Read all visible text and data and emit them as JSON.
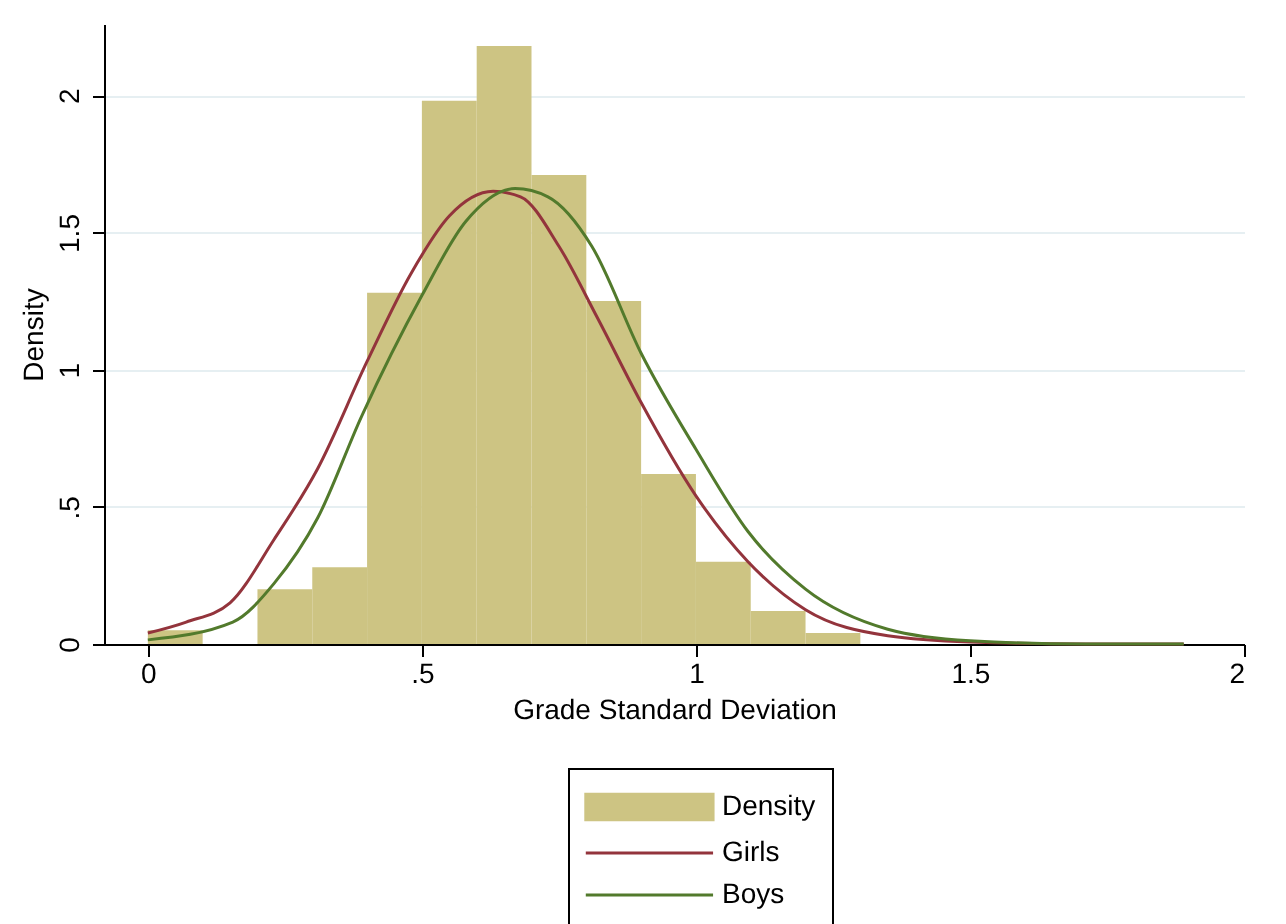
{
  "chart_data": {
    "type": "histogram",
    "xlabel": "Grade Standard Deviation",
    "ylabel": "Density",
    "bins": [
      0,
      0.1,
      0.2,
      0.3,
      0.4,
      0.5,
      0.6,
      0.7,
      0.8,
      0.9,
      1.0,
      1.1,
      1.2,
      1.3
    ],
    "series": [
      {
        "name": "Density",
        "color": "#cdc483",
        "values": [
          0.05,
          0,
          0.2,
          0.28,
          1.28,
          1.98,
          2.18,
          1.71,
          1.25,
          0.62,
          0.3,
          0.12,
          0.04
        ]
      },
      {
        "name": "Girls",
        "type": "line",
        "color": "#93343c",
        "x": [
          0,
          0.07,
          0.15,
          0.23,
          0.31,
          0.4,
          0.48,
          0.55,
          0.63,
          0.68,
          0.75,
          0.82,
          0.9,
          1.0,
          1.095,
          1.2,
          1.35,
          1.5,
          1.71,
          1.89
        ],
        "values": [
          0.04,
          0.08,
          0.15,
          0.38,
          0.64,
          1.03,
          1.35,
          1.56,
          1.65,
          1.63,
          1.45,
          1.19,
          0.88,
          0.54,
          0.3,
          0.125,
          0.03,
          0.007,
          0,
          0
        ]
      },
      {
        "name": "Boys",
        "type": "line",
        "color": "#527a2c",
        "x": [
          0,
          0.155,
          0.23,
          0.31,
          0.39,
          0.5,
          0.58,
          0.67,
          0.73,
          0.81,
          0.9,
          1.0,
          1.095,
          1.2,
          1.35,
          1.5,
          1.71,
          1.89
        ],
        "values": [
          0.015,
          0.08,
          0.22,
          0.46,
          0.83,
          1.27,
          1.54,
          1.66,
          1.63,
          1.45,
          1.06,
          0.71,
          0.41,
          0.2,
          0.054,
          0.012,
          0,
          0
        ]
      }
    ],
    "xlim": [
      -0.08,
      2
    ],
    "xticks": [
      {
        "value": 0,
        "label": "0"
      },
      {
        "value": 0.5,
        "label": ".5"
      },
      {
        "value": 1,
        "label": "1"
      },
      {
        "value": 1.5,
        "label": "1.5"
      },
      {
        "value": 2,
        "label": "2"
      }
    ],
    "ylim": [
      0,
      2.26
    ],
    "yticks": [
      {
        "value": 0,
        "label": "0"
      },
      {
        "value": 0.5,
        "label": ".5"
      },
      {
        "value": 1,
        "label": "1"
      },
      {
        "value": 1.5,
        "label": "1.5"
      },
      {
        "value": 2,
        "label": "2"
      }
    ],
    "grid": "y",
    "legend": "bottom"
  }
}
